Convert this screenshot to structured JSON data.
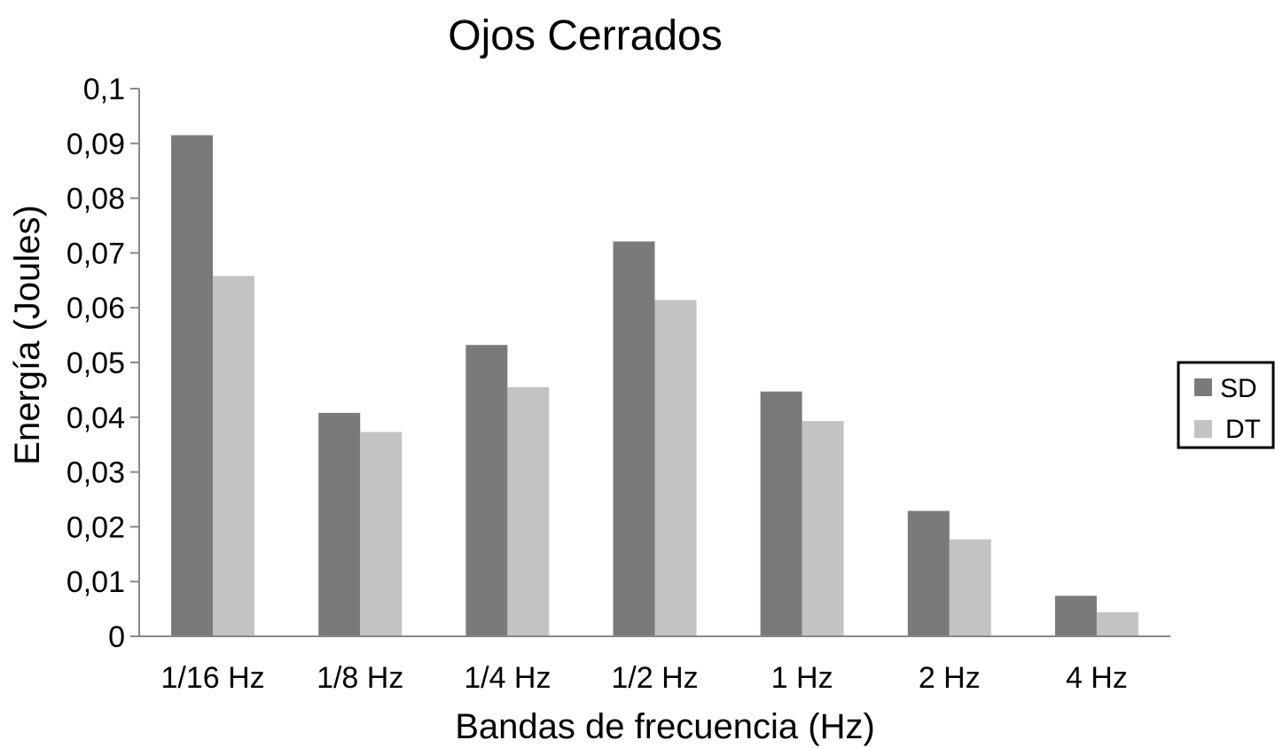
{
  "chart_data": {
    "type": "bar",
    "title": "Ojos Cerrados",
    "xlabel": "Bandas de frecuencia (Hz)",
    "ylabel": "Energía (Joules)",
    "categories": [
      "1/16 Hz",
      "1/8 Hz",
      "1/4 Hz",
      "1/2 Hz",
      "1 Hz",
      "2 Hz",
      "4 Hz"
    ],
    "series": [
      {
        "name": "SD",
        "color": "#7a7a7a",
        "values": [
          0.0915,
          0.0408,
          0.0532,
          0.0721,
          0.0447,
          0.0229,
          0.0074
        ]
      },
      {
        "name": "DT",
        "color": "#c3c3c3",
        "values": [
          0.0658,
          0.0373,
          0.0455,
          0.0614,
          0.0393,
          0.0177,
          0.0044
        ]
      }
    ],
    "ylim": [
      0,
      0.1
    ],
    "yticks": [
      "0",
      "0,01",
      "0,02",
      "0,03",
      "0,04",
      "0,05",
      "0,06",
      "0,07",
      "0,08",
      "0,09",
      "0,1"
    ],
    "grid": false,
    "legend_position": "right"
  }
}
